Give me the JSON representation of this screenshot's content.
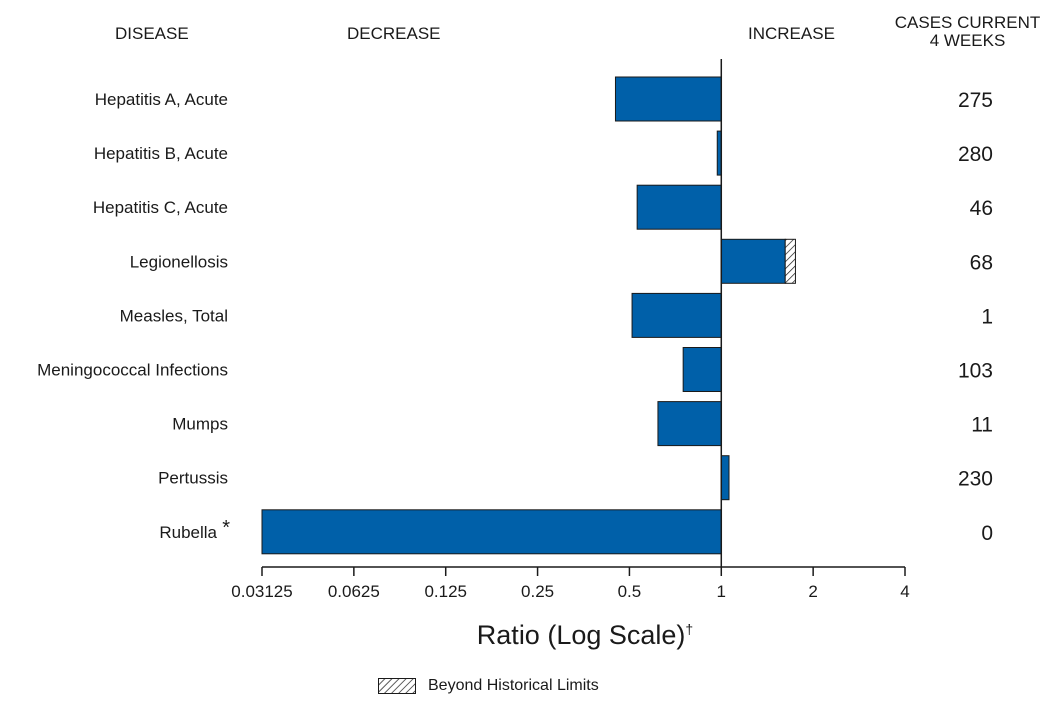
{
  "headers": {
    "disease": "DISEASE",
    "decrease": "DECREASE",
    "increase": "INCREASE",
    "cases_line1": "CASES CURRENT",
    "cases_line2": "4 WEEKS"
  },
  "chart_data": {
    "type": "bar",
    "orientation": "horizontal",
    "xscale": "log2",
    "xlim": [
      0.03125,
      4
    ],
    "xticks": [
      "0.03125",
      "0.0625",
      "0.125",
      "0.25",
      "0.5",
      "1",
      "2",
      "4"
    ],
    "xlabel": "Ratio (Log Scale)",
    "xlabel_mark": "†",
    "categories": [
      "Hepatitis A, Acute",
      "Hepatitis B, Acute",
      "Hepatitis C, Acute",
      "Legionellosis",
      "Measles, Total",
      "Meningococcal Infections",
      "Mumps",
      "Pertussis",
      "Rubella"
    ],
    "category_marks": [
      "",
      "",
      "",
      "",
      "",
      "",
      "",
      "",
      "*"
    ],
    "values": [
      0.45,
      0.97,
      0.53,
      1.75,
      0.51,
      0.75,
      0.62,
      1.06,
      0.03125
    ],
    "beyond_historical_limits_from": [
      null,
      null,
      null,
      1.62,
      null,
      null,
      null,
      null,
      null
    ],
    "cases_current_4_weeks": [
      "275",
      "280",
      "46",
      "68",
      "1",
      "103",
      "11",
      "230",
      "0"
    ],
    "bar_color": "#0060a9",
    "legend": "Beyond Historical Limits",
    "reference_line": 1
  }
}
